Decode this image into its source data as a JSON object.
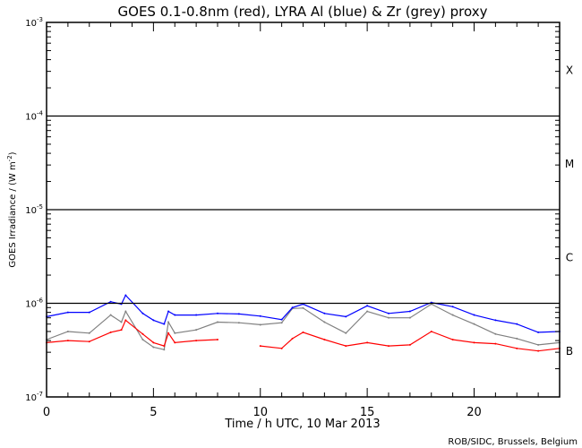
{
  "chart_data": {
    "type": "line",
    "title": "GOES 0.1-0.8nm (red), LYRA Al (blue) & Zr (grey) proxy",
    "xlabel": "Time / h UTC, 10 Mar 2013",
    "ylabel": "GOES Irradiance / (W m",
    "ylabel_sup": "-2",
    "ylabel_end": ")",
    "yscale": "log",
    "xlim": [
      0,
      24
    ],
    "ylim": [
      1e-07,
      0.001
    ],
    "x_ticks": [
      "0",
      "5",
      "10",
      "15",
      "20"
    ],
    "x_tick_values": [
      0,
      5,
      10,
      15,
      20
    ],
    "y_ticks": [
      {
        "base": "10",
        "exp": "-3",
        "value": 0.001
      },
      {
        "base": "10",
        "exp": "-4",
        "value": 0.0001
      },
      {
        "base": "10",
        "exp": "-5",
        "value": 1e-05
      },
      {
        "base": "10",
        "exp": "-6",
        "value": 1e-06
      },
      {
        "base": "10",
        "exp": "-7",
        "value": 1e-07
      }
    ],
    "flare_classes": [
      {
        "label": "X",
        "value": 0.000316
      },
      {
        "label": "M",
        "value": 3.16e-05
      },
      {
        "label": "C",
        "value": 3.16e-06
      },
      {
        "label": "B",
        "value": 3.16e-07
      }
    ],
    "threshold_lines": [
      0.0001,
      1e-05,
      1e-06
    ],
    "x": [
      0,
      1,
      2,
      3,
      3.5,
      3.7,
      4.5,
      5,
      5.5,
      5.7,
      6,
      7,
      8,
      9,
      10,
      11,
      11.5,
      12,
      13,
      14,
      15,
      16,
      17,
      18,
      19,
      20,
      21,
      22,
      23,
      24
    ],
    "series": [
      {
        "name": "LYRA Zr proxy",
        "color": "#808080",
        "values": [
          4.1e-07,
          5e-07,
          4.8e-07,
          7.5e-07,
          6.3e-07,
          8.2e-07,
          4.1e-07,
          3.4e-07,
          3.2e-07,
          6.3e-07,
          4.8e-07,
          5.2e-07,
          6.3e-07,
          6.2e-07,
          5.9e-07,
          6.2e-07,
          8.8e-07,
          8.9e-07,
          6.3e-07,
          4.8e-07,
          8.2e-07,
          7e-07,
          7e-07,
          9.8e-07,
          7.5e-07,
          6e-07,
          4.7e-07,
          4.2e-07,
          3.6e-07,
          3.8e-07
        ]
      },
      {
        "name": "LYRA Al proxy",
        "color": "#0000ff",
        "values": [
          7.2e-07,
          8e-07,
          8e-07,
          1.04e-06,
          9.8e-07,
          1.22e-06,
          7.8e-07,
          6.6e-07,
          6e-07,
          8.2e-07,
          7.5e-07,
          7.5e-07,
          7.8e-07,
          7.7e-07,
          7.3e-07,
          6.7e-07,
          9e-07,
          9.8e-07,
          7.8e-07,
          7.2e-07,
          9.4e-07,
          7.8e-07,
          8.2e-07,
          1.02e-06,
          9.2e-07,
          7.5e-07,
          6.6e-07,
          6e-07,
          4.9e-07,
          5e-07
        ]
      },
      {
        "name": "GOES 0.1-0.8nm",
        "color": "#ff0000",
        "values": [
          3.8e-07,
          4e-07,
          3.9e-07,
          4.9e-07,
          5.2e-07,
          6.6e-07,
          4.7e-07,
          3.8e-07,
          3.5e-07,
          4.8e-07,
          3.8e-07,
          4e-07,
          4.1e-07,
          null,
          3.5e-07,
          3.3e-07,
          4.2e-07,
          4.9e-07,
          4.1e-07,
          3.5e-07,
          3.8e-07,
          3.5e-07,
          3.6e-07,
          5e-07,
          4.1e-07,
          3.8e-07,
          3.7e-07,
          3.3e-07,
          3.1e-07,
          3.3e-07
        ]
      }
    ],
    "grid": false,
    "credit": "ROB/SIDC, Brussels, Belgium"
  }
}
